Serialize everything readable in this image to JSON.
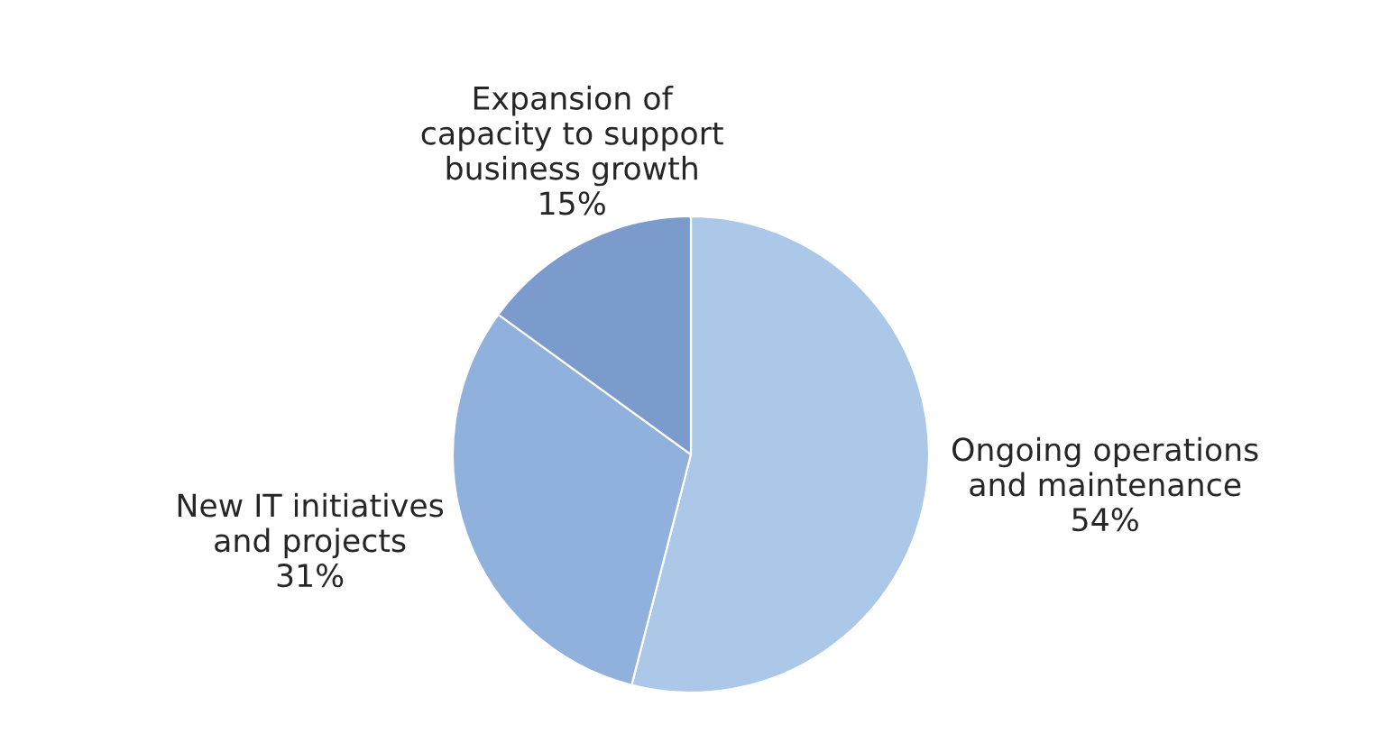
{
  "chart_data": {
    "type": "pie",
    "categories": [
      "Ongoing operations and maintenance",
      "New IT initiatives and projects",
      "Expansion of capacity to support business growth"
    ],
    "values": [
      54,
      31,
      15
    ],
    "value_labels": [
      "54%",
      "31%",
      "15%"
    ],
    "colors": [
      "#abc8e8",
      "#8fb1dc",
      "#7a9bcb"
    ]
  }
}
